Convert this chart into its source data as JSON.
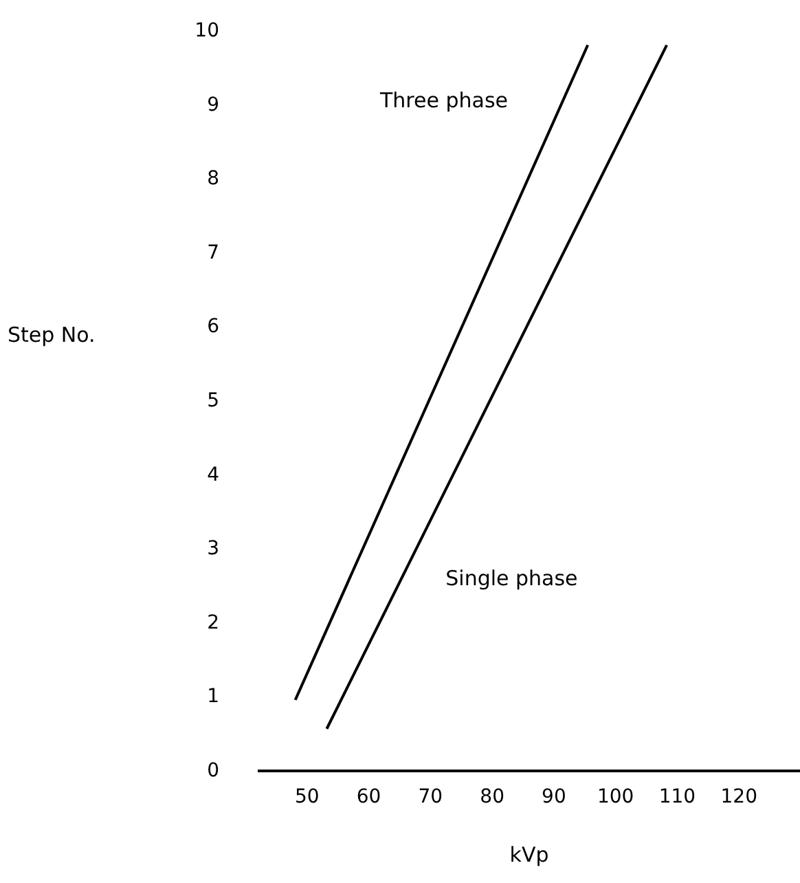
{
  "chart_data": {
    "type": "line",
    "xlabel": "kVp",
    "ylabel": "Step No.",
    "xlim": [
      42,
      130
    ],
    "ylim": [
      0,
      10
    ],
    "xticks": [
      50,
      60,
      70,
      80,
      90,
      100,
      110,
      120
    ],
    "yticks": [
      0,
      1,
      2,
      3,
      4,
      5,
      6,
      7,
      8,
      9,
      10
    ],
    "grid": false,
    "series": [
      {
        "name": "Three phase",
        "color": "#000000",
        "x": [
          48.2,
          95.6
        ],
        "values": [
          0.95,
          9.8
        ]
      },
      {
        "name": "Single phase",
        "color": "#000000",
        "x": [
          53.3,
          108.4
        ],
        "values": [
          0.56,
          9.8
        ]
      }
    ]
  }
}
